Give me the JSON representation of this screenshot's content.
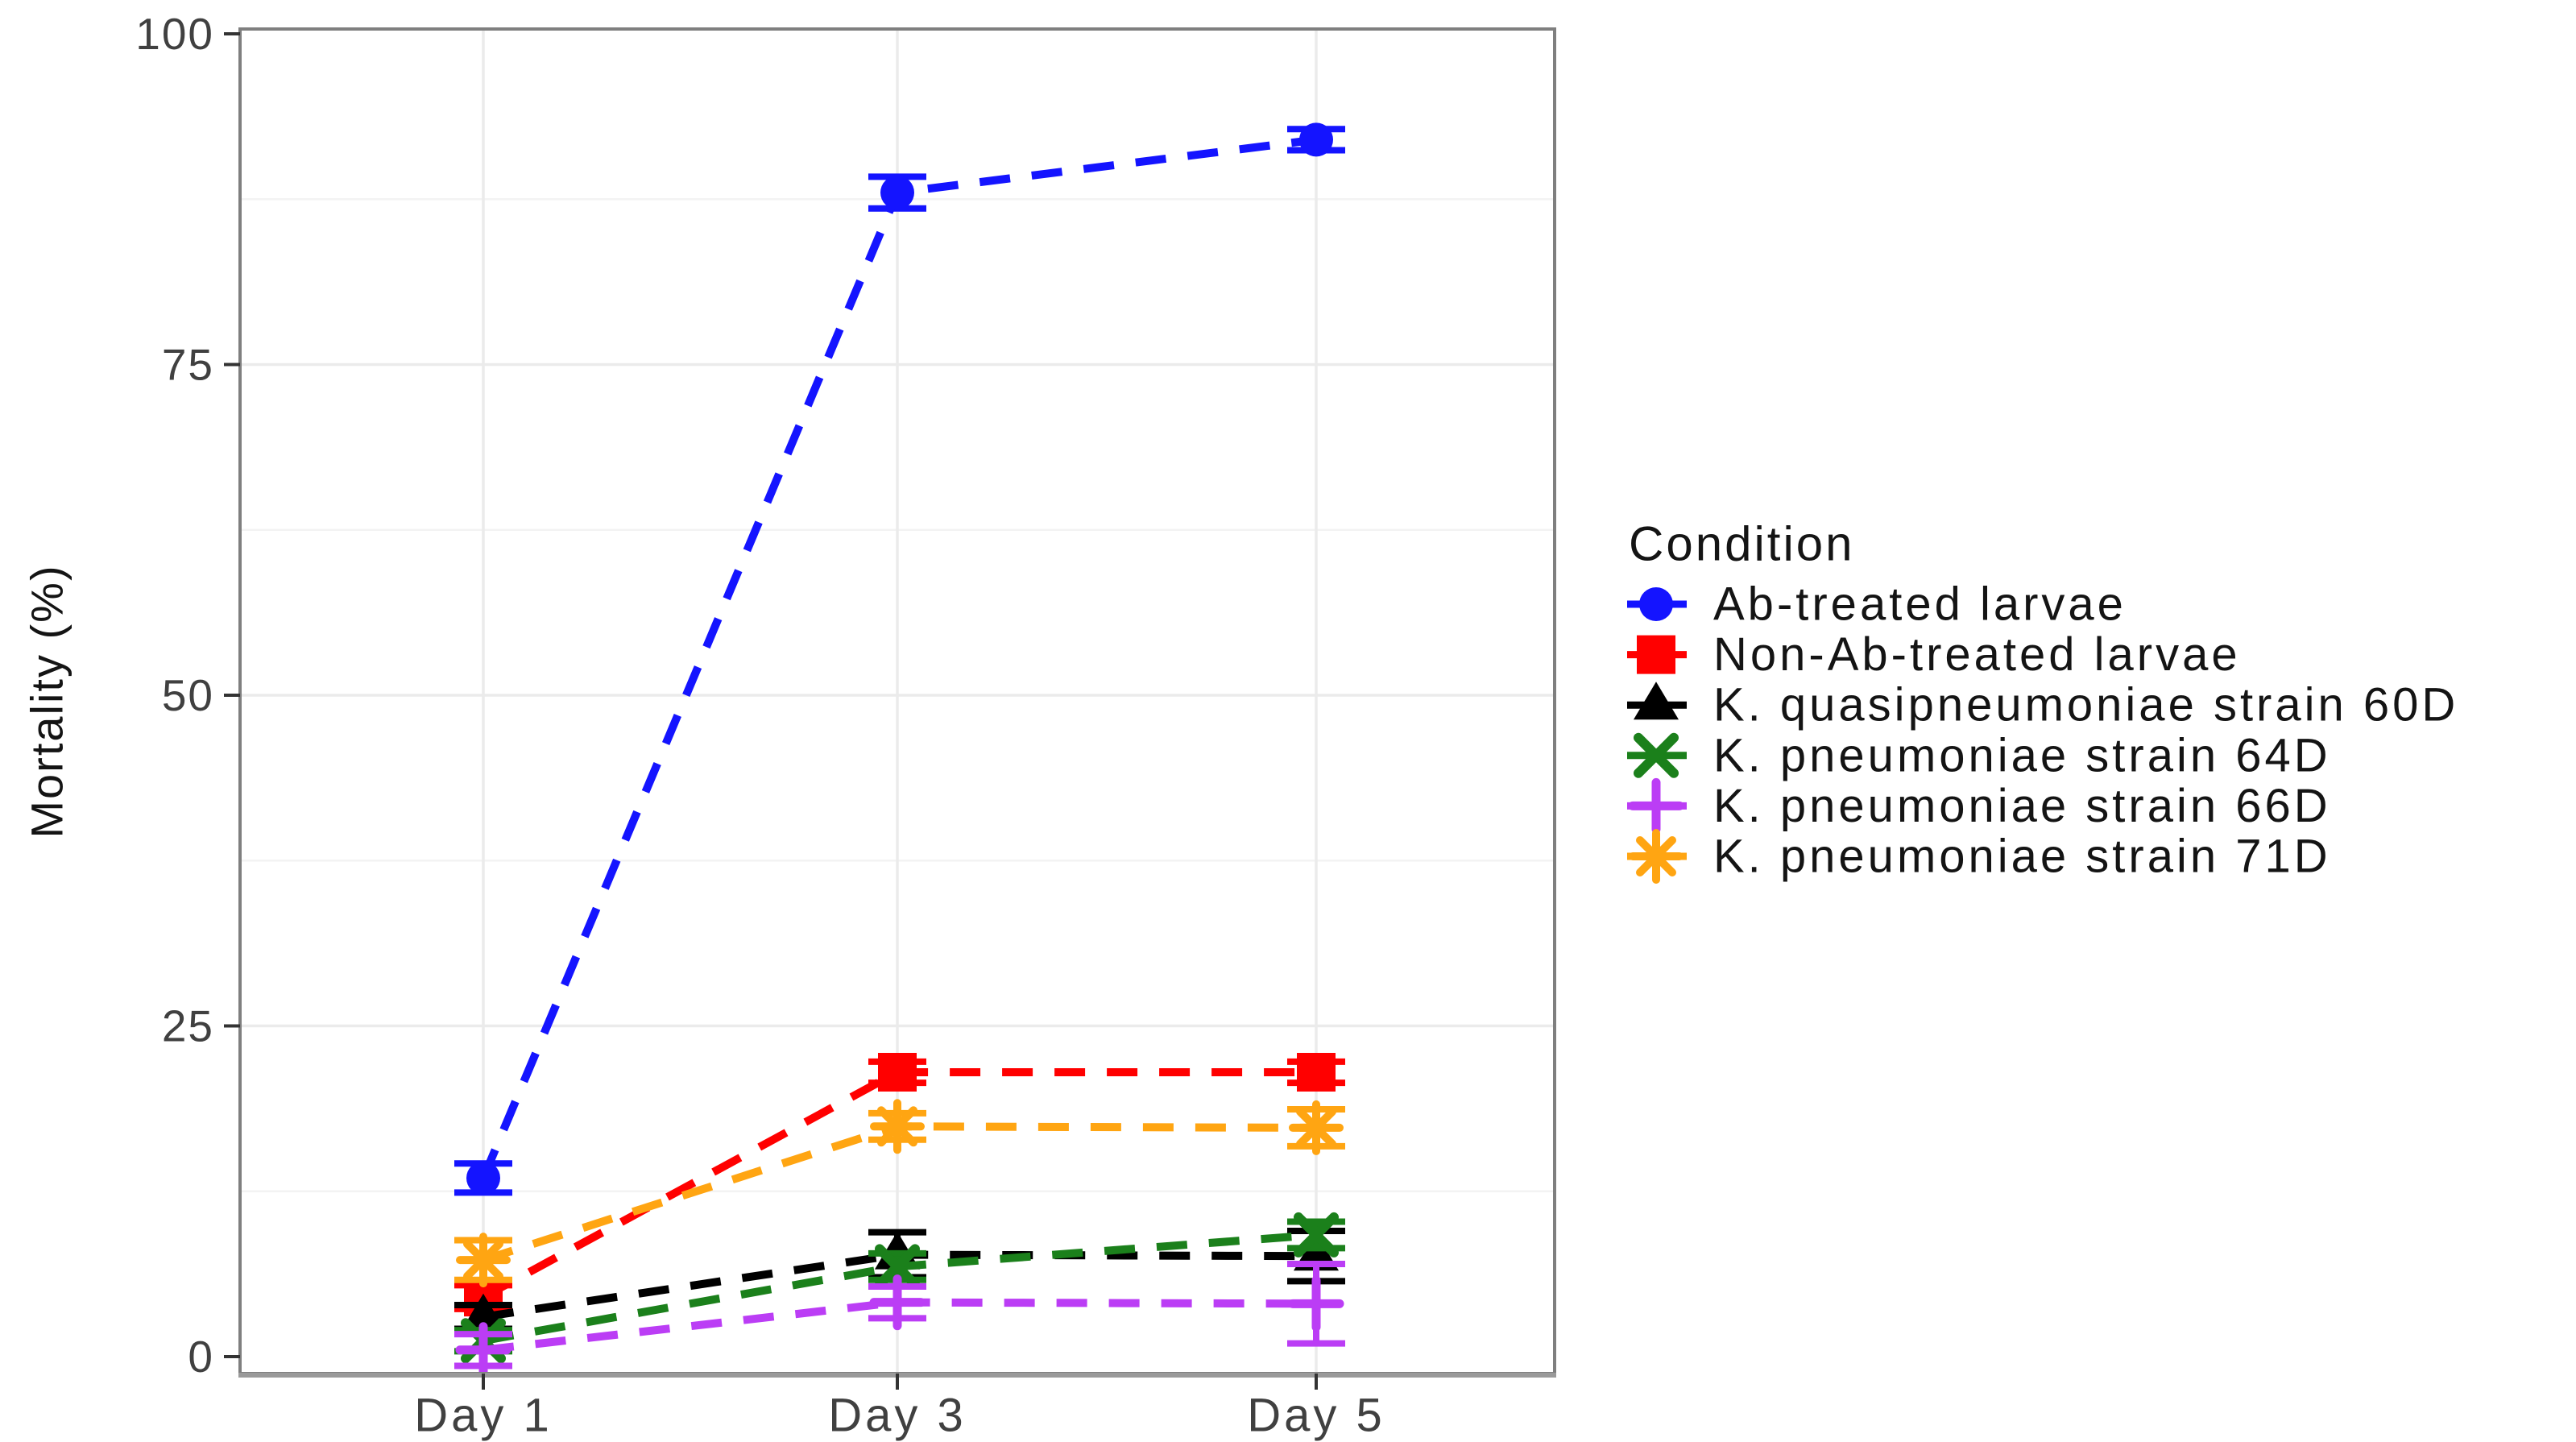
{
  "chart_data": {
    "type": "line",
    "title": "",
    "xlabel": "",
    "ylabel": "Mortality (%)",
    "categories": [
      "Day 1",
      "Day 3",
      "Day 5"
    ],
    "y_ticks": [
      0,
      25,
      50,
      75,
      100
    ],
    "ylim": [
      0,
      100
    ],
    "grid": {
      "h_major": [
        25,
        50,
        75
      ],
      "h_minor": [
        12.5,
        37.5,
        62.5,
        87.5
      ],
      "v_at_categories": true,
      "major_color": "#ebebeb",
      "minor_color": "#f3f3f3"
    },
    "line_style": "dashed",
    "error_bars": true,
    "legend": {
      "title": "Condition",
      "position": "right"
    },
    "panel": {
      "border_color": "#7f7f7f",
      "background": "#ffffff",
      "tick_color": "#333333",
      "tick_label_color": "#404040",
      "axis_title_color": "#141414"
    },
    "series": [
      {
        "name": "Ab-treated larvae",
        "color": "#1414ff",
        "marker": "circle",
        "values": [
          13.5,
          88,
          92
        ],
        "errors": [
          1.1,
          1.2,
          0.8
        ]
      },
      {
        "name": "Non-Ab-treated larvae",
        "color": "#ff0000",
        "marker": "square",
        "values": [
          4.5,
          21.5,
          21.5
        ],
        "errors": [
          0.9,
          0.8,
          0.8
        ]
      },
      {
        "name": "K. quasipneumoniae strain 60D",
        "color": "#000000",
        "marker": "triangle",
        "values": [
          3,
          7.7,
          7.6
        ],
        "errors": [
          0.9,
          1.7,
          1.9
        ]
      },
      {
        "name": "K. pneumoniae strain 64D",
        "color": "#1b801b",
        "marker": "x",
        "values": [
          1.2,
          6.8,
          9.2
        ],
        "errors": [
          0.8,
          1.0,
          1.0
        ]
      },
      {
        "name": "K. pneumoniae strain 66D",
        "color": "#bb3df5",
        "marker": "plus",
        "values": [
          0.5,
          4.1,
          4.0
        ],
        "errors": [
          1.2,
          1.2,
          3.0
        ]
      },
      {
        "name": "K. pneumoniae strain 71D",
        "color": "#ffa512",
        "marker": "asterisk",
        "values": [
          7.3,
          17.4,
          17.3
        ],
        "errors": [
          1.5,
          1.0,
          1.4
        ]
      }
    ]
  }
}
